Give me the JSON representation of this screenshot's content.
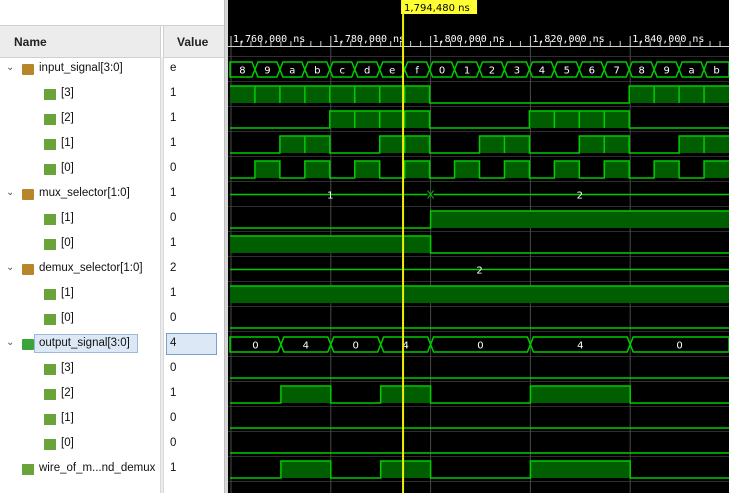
{
  "header": {
    "name_label": "Name",
    "value_label": "Value"
  },
  "cursor": {
    "label": "1,794,480 ns",
    "time": 1794480
  },
  "timeline": {
    "ticks": [
      {
        "time": 1760000,
        "label": "1,760,000 ns"
      },
      {
        "time": 1780000,
        "label": "1,780,000 ns"
      },
      {
        "time": 1800000,
        "label": "1,800,000 ns"
      },
      {
        "time": 1820000,
        "label": "1,820,000 ns"
      },
      {
        "time": 1840000,
        "label": "1,840,000 ns"
      }
    ],
    "start": 1759800,
    "end": 1859800,
    "clock_period": 2500
  },
  "signals": [
    {
      "id": "input_signal",
      "name": "input_signal[3:0]",
      "value": "e",
      "type": "bus",
      "expanded": true,
      "level": 0
    },
    {
      "id": "in3",
      "name": "[3]",
      "value": "1",
      "type": "bit",
      "level": 1
    },
    {
      "id": "in2",
      "name": "[2]",
      "value": "1",
      "type": "bit",
      "level": 1
    },
    {
      "id": "in1",
      "name": "[1]",
      "value": "1",
      "type": "bit",
      "level": 1
    },
    {
      "id": "in0",
      "name": "[0]",
      "value": "0",
      "type": "bit",
      "level": 1
    },
    {
      "id": "mux_selector",
      "name": "mux_selector[1:0]",
      "value": "1",
      "type": "bus",
      "expanded": true,
      "level": 0
    },
    {
      "id": "mux1",
      "name": "[1]",
      "value": "0",
      "type": "bit",
      "level": 1
    },
    {
      "id": "mux0",
      "name": "[0]",
      "value": "1",
      "type": "bit",
      "level": 1
    },
    {
      "id": "demux_selector",
      "name": "demux_selector[1:0]",
      "value": "2",
      "type": "bus",
      "expanded": true,
      "level": 0
    },
    {
      "id": "dmx1",
      "name": "[1]",
      "value": "1",
      "type": "bit",
      "level": 1
    },
    {
      "id": "dmx0",
      "name": "[0]",
      "value": "0",
      "type": "bit",
      "level": 1
    },
    {
      "id": "output_signal",
      "name": "output_signal[3:0]",
      "value": "4",
      "type": "bus",
      "expanded": true,
      "selected": true,
      "level": 0
    },
    {
      "id": "out3",
      "name": "[3]",
      "value": "0",
      "type": "bit",
      "level": 1
    },
    {
      "id": "out2",
      "name": "[2]",
      "value": "1",
      "type": "bit",
      "level": 1
    },
    {
      "id": "out1",
      "name": "[1]",
      "value": "0",
      "type": "bit",
      "level": 1
    },
    {
      "id": "out0",
      "name": "[0]",
      "value": "0",
      "type": "bit",
      "level": 1
    },
    {
      "id": "wire",
      "name": "wire_of_m...nd_demux",
      "value": "1",
      "type": "wire",
      "level": 0
    }
  ],
  "waveforms": {
    "input_bus_values": [
      "8",
      "9",
      "a",
      "b",
      "c",
      "d",
      "e",
      "f",
      "0",
      "1",
      "2",
      "3",
      "4",
      "5",
      "6",
      "7",
      "8",
      "9",
      "a",
      "b"
    ],
    "mux_bus": [
      {
        "from": 1759800,
        "to": 1800000,
        "label": "1"
      },
      {
        "from": 1800000,
        "to": 1859800,
        "label": "2"
      }
    ],
    "demux_bus": [
      {
        "from": 1759800,
        "to": 1859800,
        "label": "2"
      }
    ],
    "output_bus": [
      {
        "from": 1759800,
        "to": 1770000,
        "label": "0"
      },
      {
        "from": 1770000,
        "to": 1780000,
        "label": "4"
      },
      {
        "from": 1780000,
        "to": 1790000,
        "label": "0"
      },
      {
        "from": 1790000,
        "to": 1800000,
        "label": "4"
      },
      {
        "from": 1800000,
        "to": 1820000,
        "label": "0"
      },
      {
        "from": 1820000,
        "to": 1840000,
        "label": "4"
      },
      {
        "from": 1840000,
        "to": 1859800,
        "label": "0"
      }
    ],
    "out2_high": [
      [
        1770000,
        1780000
      ],
      [
        1790000,
        1800000
      ],
      [
        1820000,
        1840000
      ]
    ],
    "wire_high": [
      [
        1770000,
        1780000
      ],
      [
        1790000,
        1800000
      ],
      [
        1820000,
        1840000
      ]
    ],
    "mux1_high": [
      [
        1800000,
        1859800
      ]
    ],
    "mux0_high": [
      [
        1759800,
        1800000
      ]
    ],
    "dmx1_high": [
      [
        1759800,
        1859800
      ]
    ],
    "dmx0_high": [],
    "out3_high": [],
    "out1_high": [],
    "out0_high": []
  },
  "colors": {
    "wave": "#00cc00",
    "wave_fill": "#005e00",
    "cursor": "#f0f000",
    "grid": "#2e2e2e",
    "text": "#ffffff",
    "cursor_label_bg": "#ffff33"
  }
}
